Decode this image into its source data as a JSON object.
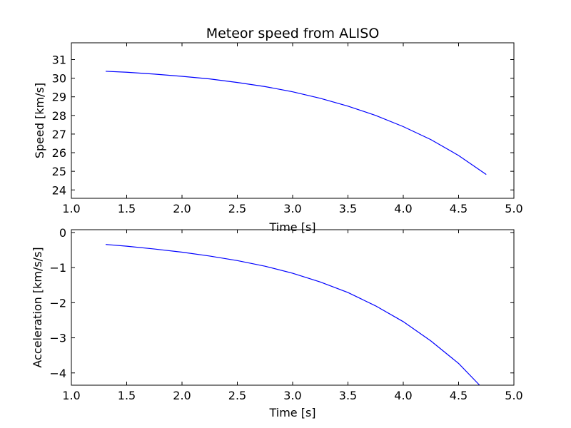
{
  "figure": {
    "background": "#ffffff",
    "line_color": "#0000ff"
  },
  "chart_data": [
    {
      "type": "line",
      "title": "Meteor speed from  ALISO",
      "xlabel": "Time [s]",
      "ylabel": "Speed [km/s]",
      "xlim": [
        1.0,
        5.0
      ],
      "ylim": [
        23.55,
        31.9
      ],
      "xticks": [
        "1.0",
        "1.5",
        "2.0",
        "2.5",
        "3.0",
        "3.5",
        "4.0",
        "4.5",
        "5.0"
      ],
      "yticks": [
        "24",
        "25",
        "26",
        "27",
        "28",
        "29",
        "30",
        "31"
      ],
      "grid": false,
      "series": [
        {
          "color": "#0000ff",
          "x": [
            1.31,
            1.5,
            1.75,
            2.0,
            2.25,
            2.5,
            2.75,
            3.0,
            3.25,
            3.5,
            3.75,
            4.0,
            4.25,
            4.5,
            4.75
          ],
          "y": [
            30.37,
            30.32,
            30.22,
            30.1,
            29.96,
            29.77,
            29.55,
            29.27,
            28.92,
            28.5,
            28.0,
            27.4,
            26.7,
            25.85,
            24.83
          ]
        }
      ]
    },
    {
      "type": "line",
      "title": "",
      "xlabel": "Time [s]",
      "ylabel": "Acceleration [km/s/s]",
      "xlim": [
        1.0,
        5.0
      ],
      "ylim": [
        -4.35,
        0.08
      ],
      "xticks": [
        "1.0",
        "1.5",
        "2.0",
        "2.5",
        "3.0",
        "3.5",
        "4.0",
        "4.5",
        "5.0"
      ],
      "yticks": [
        "0",
        "−1",
        "−2",
        "−3",
        "−4"
      ],
      "grid": false,
      "series": [
        {
          "color": "#0000ff",
          "x": [
            1.31,
            1.5,
            1.75,
            2.0,
            2.25,
            2.5,
            2.75,
            3.0,
            3.25,
            3.5,
            3.75,
            4.0,
            4.25,
            4.5,
            4.69
          ],
          "y": [
            -0.34,
            -0.39,
            -0.47,
            -0.56,
            -0.67,
            -0.8,
            -0.96,
            -1.16,
            -1.41,
            -1.71,
            -2.09,
            -2.54,
            -3.09,
            -3.73,
            -4.35
          ]
        }
      ]
    }
  ]
}
